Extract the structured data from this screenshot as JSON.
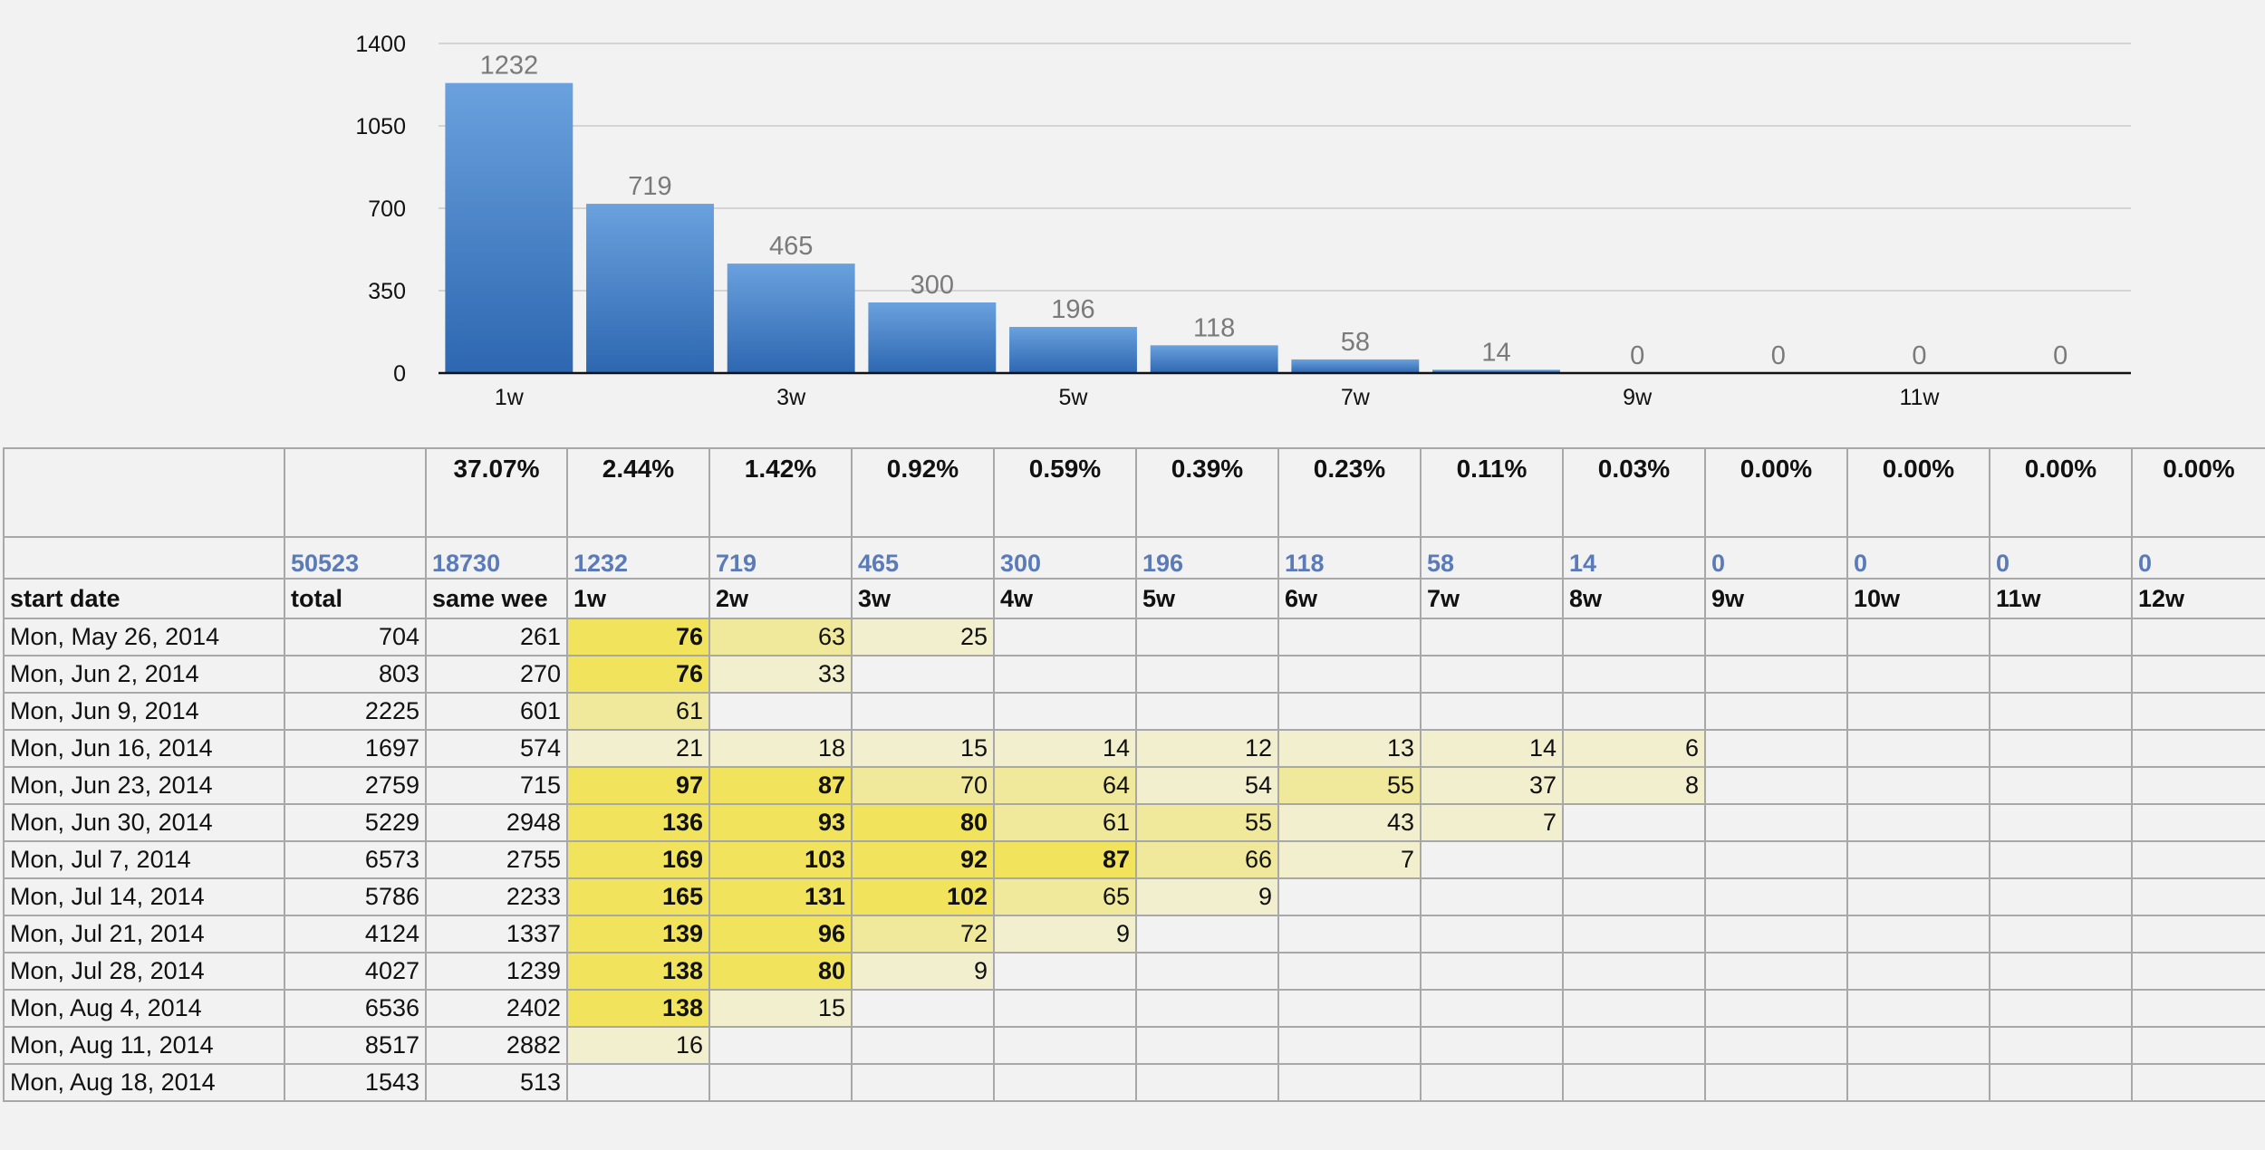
{
  "chart_data": {
    "type": "bar",
    "categories": [
      "1w",
      "2w",
      "3w",
      "4w",
      "5w",
      "6w",
      "7w",
      "8w",
      "9w",
      "10w",
      "11w",
      "12w"
    ],
    "x_tick_labels": [
      "1w",
      "",
      "3w",
      "",
      "5w",
      "",
      "7w",
      "",
      "9w",
      "",
      "11w",
      ""
    ],
    "values": [
      1232,
      719,
      465,
      300,
      196,
      118,
      58,
      14,
      0,
      0,
      0,
      0
    ],
    "data_labels": [
      "1232",
      "719",
      "465",
      "300",
      "196",
      "118",
      "58",
      "14",
      "0",
      "0",
      "0",
      "0"
    ],
    "y_ticks": [
      "0",
      "350",
      "700",
      "1050",
      "1400"
    ],
    "ylim": [
      0,
      1400
    ],
    "grid": true,
    "bar_color_top": "#6aa1de",
    "bar_color_bottom": "#2d67b0",
    "title": "",
    "xlabel": "",
    "ylabel": ""
  },
  "table": {
    "percent_row": [
      "",
      "",
      "37.07%",
      "2.44%",
      "1.42%",
      "0.92%",
      "0.59%",
      "0.39%",
      "0.23%",
      "0.11%",
      "0.03%",
      "0.00%",
      "0.00%",
      "0.00%",
      "0.00%"
    ],
    "count_row": [
      "",
      "50523",
      "18730",
      "1232",
      "719",
      "465",
      "300",
      "196",
      "118",
      "58",
      "14",
      "0",
      "0",
      "0",
      "0"
    ],
    "headers": [
      "start date",
      "total",
      "same wee",
      "1w",
      "2w",
      "3w",
      "4w",
      "5w",
      "6w",
      "7w",
      "8w",
      "9w",
      "10w",
      "11w",
      "12w"
    ],
    "rows": [
      {
        "date": "Mon, May 26, 2014",
        "total": "704",
        "same": "261",
        "cells": [
          "76",
          "63",
          "25",
          "",
          "",
          "",
          "",
          "",
          "",
          "",
          "",
          ""
        ]
      },
      {
        "date": "Mon, Jun 2, 2014",
        "total": "803",
        "same": "270",
        "cells": [
          "76",
          "33",
          "",
          "",
          "",
          "",
          "",
          "",
          "",
          "",
          "",
          ""
        ]
      },
      {
        "date": "Mon, Jun 9, 2014",
        "total": "2225",
        "same": "601",
        "cells": [
          "61",
          "",
          "",
          "",
          "",
          "",
          "",
          "",
          "",
          "",
          "",
          ""
        ]
      },
      {
        "date": "Mon, Jun 16, 2014",
        "total": "1697",
        "same": "574",
        "cells": [
          "21",
          "18",
          "15",
          "14",
          "12",
          "13",
          "14",
          "6",
          "",
          "",
          "",
          ""
        ]
      },
      {
        "date": "Mon, Jun 23, 2014",
        "total": "2759",
        "same": "715",
        "cells": [
          "97",
          "87",
          "70",
          "64",
          "54",
          "55",
          "37",
          "8",
          "",
          "",
          "",
          ""
        ]
      },
      {
        "date": "Mon, Jun 30, 2014",
        "total": "5229",
        "same": "2948",
        "cells": [
          "136",
          "93",
          "80",
          "61",
          "55",
          "43",
          "7",
          "",
          "",
          "",
          "",
          ""
        ]
      },
      {
        "date": "Mon, Jul 7, 2014",
        "total": "6573",
        "same": "2755",
        "cells": [
          "169",
          "103",
          "92",
          "87",
          "66",
          "7",
          "",
          "",
          "",
          "",
          "",
          ""
        ]
      },
      {
        "date": "Mon, Jul 14, 2014",
        "total": "5786",
        "same": "2233",
        "cells": [
          "165",
          "131",
          "102",
          "65",
          "9",
          "",
          "",
          "",
          "",
          "",
          "",
          ""
        ]
      },
      {
        "date": "Mon, Jul 21, 2014",
        "total": "4124",
        "same": "1337",
        "cells": [
          "139",
          "96",
          "72",
          "9",
          "",
          "",
          "",
          "",
          "",
          "",
          "",
          ""
        ]
      },
      {
        "date": "Mon, Jul 28, 2014",
        "total": "4027",
        "same": "1239",
        "cells": [
          "138",
          "80",
          "9",
          "",
          "",
          "",
          "",
          "",
          "",
          "",
          "",
          ""
        ]
      },
      {
        "date": "Mon, Aug 4, 2014",
        "total": "6536",
        "same": "2402",
        "cells": [
          "138",
          "15",
          "",
          "",
          "",
          "",
          "",
          "",
          "",
          "",
          "",
          ""
        ]
      },
      {
        "date": "Mon, Aug 11, 2014",
        "total": "8517",
        "same": "2882",
        "cells": [
          "16",
          "",
          "",
          "",
          "",
          "",
          "",
          "",
          "",
          "",
          "",
          ""
        ]
      },
      {
        "date": "Mon, Aug 18, 2014",
        "total": "1543",
        "same": "513",
        "cells": [
          "",
          "",
          "",
          "",
          "",
          "",
          "",
          "",
          "",
          "",
          "",
          ""
        ]
      }
    ],
    "heat_colors": {
      "strong": "#f1e35b",
      "medium": "#f0e89a",
      "light": "#f2efcf"
    }
  }
}
